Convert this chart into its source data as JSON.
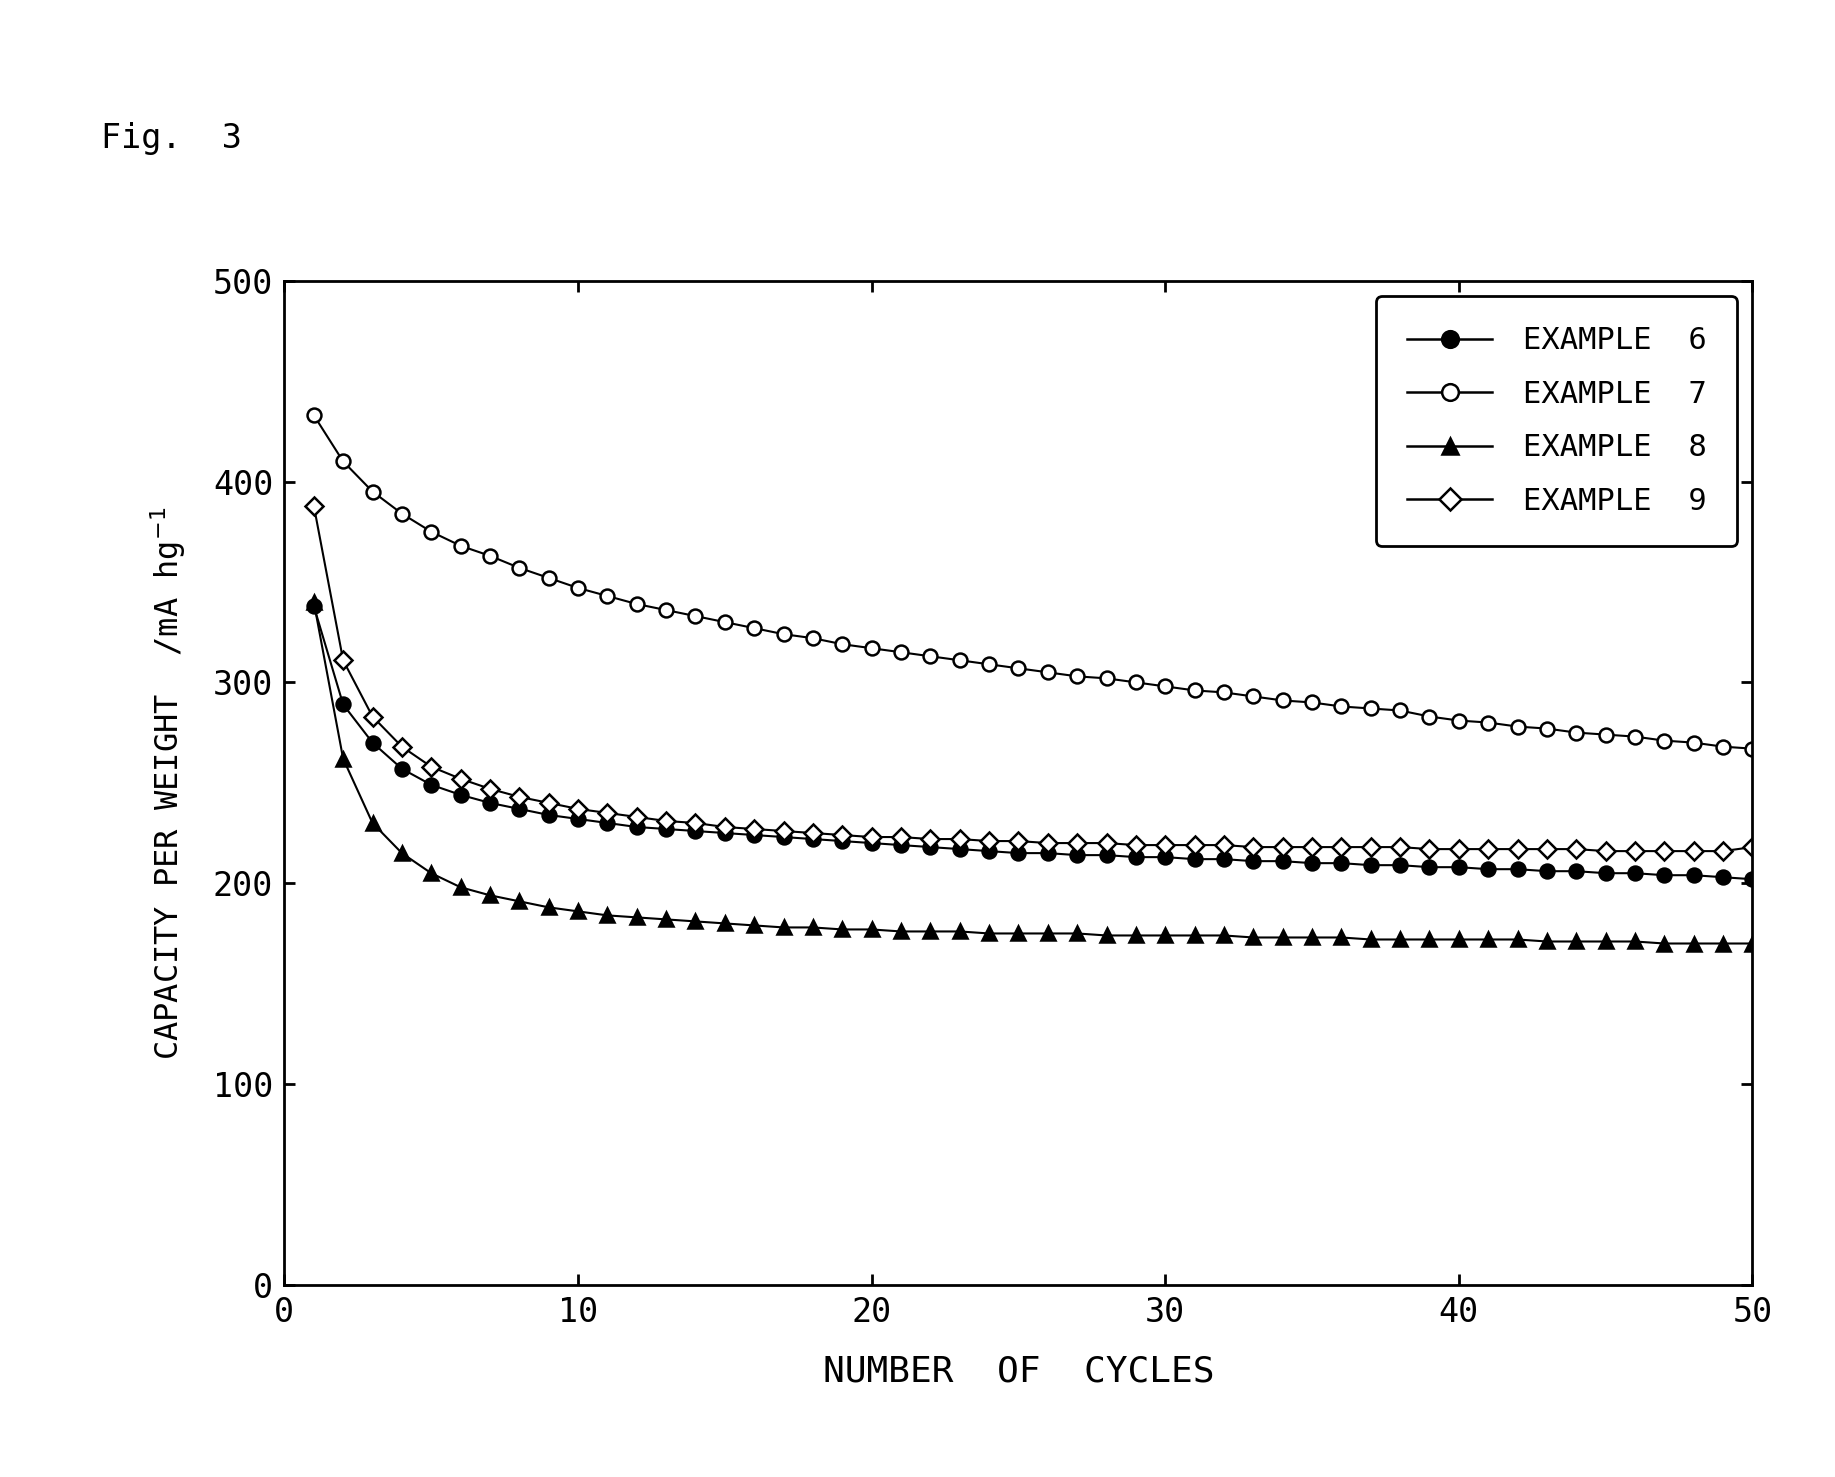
{
  "fig_label": "Fig.  3",
  "xlabel": "NUMBER  OF  CYCLES",
  "ylabel": "CAPACITY PER WEIGHT  /mA hg",
  "xlim": [
    0,
    50
  ],
  "ylim": [
    0,
    500
  ],
  "xticks": [
    0,
    10,
    20,
    30,
    40,
    50
  ],
  "yticks": [
    0,
    100,
    200,
    300,
    400,
    500
  ],
  "background_color": "#ffffff",
  "series": [
    {
      "label": "EXAMPLE  6",
      "marker": "o",
      "marker_fill": "black",
      "marker_edge": "black",
      "line_color": "black",
      "x": [
        1,
        2,
        3,
        4,
        5,
        6,
        7,
        8,
        9,
        10,
        11,
        12,
        13,
        14,
        15,
        16,
        17,
        18,
        19,
        20,
        21,
        22,
        23,
        24,
        25,
        26,
        27,
        28,
        29,
        30,
        31,
        32,
        33,
        34,
        35,
        36,
        37,
        38,
        39,
        40,
        41,
        42,
        43,
        44,
        45,
        46,
        47,
        48,
        49,
        50
      ],
      "y": [
        338,
        289,
        270,
        257,
        249,
        244,
        240,
        237,
        234,
        232,
        230,
        228,
        227,
        226,
        225,
        224,
        223,
        222,
        221,
        220,
        219,
        218,
        217,
        216,
        215,
        215,
        214,
        214,
        213,
        213,
        212,
        212,
        211,
        211,
        210,
        210,
        209,
        209,
        208,
        208,
        207,
        207,
        206,
        206,
        205,
        205,
        204,
        204,
        203,
        202
      ]
    },
    {
      "label": "EXAMPLE  7",
      "marker": "o",
      "marker_fill": "white",
      "marker_edge": "black",
      "line_color": "black",
      "x": [
        1,
        2,
        3,
        4,
        5,
        6,
        7,
        8,
        9,
        10,
        11,
        12,
        13,
        14,
        15,
        16,
        17,
        18,
        19,
        20,
        21,
        22,
        23,
        24,
        25,
        26,
        27,
        28,
        29,
        30,
        31,
        32,
        33,
        34,
        35,
        36,
        37,
        38,
        39,
        40,
        41,
        42,
        43,
        44,
        45,
        46,
        47,
        48,
        49,
        50
      ],
      "y": [
        433,
        410,
        395,
        384,
        375,
        368,
        363,
        357,
        352,
        347,
        343,
        339,
        336,
        333,
        330,
        327,
        324,
        322,
        319,
        317,
        315,
        313,
        311,
        309,
        307,
        305,
        303,
        302,
        300,
        298,
        296,
        295,
        293,
        291,
        290,
        288,
        287,
        286,
        283,
        281,
        280,
        278,
        277,
        275,
        274,
        273,
        271,
        270,
        268,
        267
      ]
    },
    {
      "label": "EXAMPLE  8",
      "marker": "^",
      "marker_fill": "black",
      "marker_edge": "black",
      "line_color": "black",
      "x": [
        1,
        2,
        3,
        4,
        5,
        6,
        7,
        8,
        9,
        10,
        11,
        12,
        13,
        14,
        15,
        16,
        17,
        18,
        19,
        20,
        21,
        22,
        23,
        24,
        25,
        26,
        27,
        28,
        29,
        30,
        31,
        32,
        33,
        34,
        35,
        36,
        37,
        38,
        39,
        40,
        41,
        42,
        43,
        44,
        45,
        46,
        47,
        48,
        49,
        50
      ],
      "y": [
        340,
        262,
        230,
        215,
        205,
        198,
        194,
        191,
        188,
        186,
        184,
        183,
        182,
        181,
        180,
        179,
        178,
        178,
        177,
        177,
        176,
        176,
        176,
        175,
        175,
        175,
        175,
        174,
        174,
        174,
        174,
        174,
        173,
        173,
        173,
        173,
        172,
        172,
        172,
        172,
        172,
        172,
        171,
        171,
        171,
        171,
        170,
        170,
        170,
        170
      ]
    },
    {
      "label": "EXAMPLE  9",
      "marker": "D",
      "marker_fill": "white",
      "marker_edge": "black",
      "line_color": "black",
      "x": [
        1,
        2,
        3,
        4,
        5,
        6,
        7,
        8,
        9,
        10,
        11,
        12,
        13,
        14,
        15,
        16,
        17,
        18,
        19,
        20,
        21,
        22,
        23,
        24,
        25,
        26,
        27,
        28,
        29,
        30,
        31,
        32,
        33,
        34,
        35,
        36,
        37,
        38,
        39,
        40,
        41,
        42,
        43,
        44,
        45,
        46,
        47,
        48,
        49,
        50
      ],
      "y": [
        388,
        311,
        283,
        268,
        258,
        252,
        247,
        243,
        240,
        237,
        235,
        233,
        231,
        230,
        228,
        227,
        226,
        225,
        224,
        223,
        223,
        222,
        222,
        221,
        221,
        220,
        220,
        220,
        219,
        219,
        219,
        219,
        218,
        218,
        218,
        218,
        218,
        218,
        217,
        217,
        217,
        217,
        217,
        217,
        216,
        216,
        216,
        216,
        216,
        218
      ]
    }
  ]
}
